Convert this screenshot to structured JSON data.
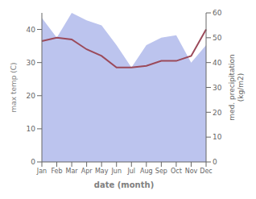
{
  "chart_data": {
    "type": "line",
    "categories": [
      "Jan",
      "Feb",
      "Mar",
      "Apr",
      "May",
      "Jun",
      "Jul",
      "Aug",
      "Sep",
      "Oct",
      "Nov",
      "Dec"
    ],
    "xlabel": "date (month)",
    "ylabel": "max temp (C)",
    "y2label": "med. precipitation\n(kg/m2)",
    "ylim": [
      0,
      45
    ],
    "yticks": [
      0,
      10,
      20,
      30,
      40
    ],
    "y2lim": [
      0,
      60
    ],
    "y2ticks": [
      0,
      10,
      20,
      30,
      40,
      50,
      60
    ],
    "grid": false,
    "series": [
      {
        "type": "area",
        "axis": "y2",
        "color": "#bcc4ee",
        "values": [
          58,
          50,
          60,
          57,
          55,
          47,
          38,
          47,
          50,
          51,
          40,
          47
        ]
      },
      {
        "type": "line",
        "color": "#9b4a5a",
        "values": [
          36.5,
          37.5,
          37.0,
          34.0,
          32.0,
          28.5,
          28.5,
          29.0,
          30.5,
          30.5,
          32.0,
          40.0
        ]
      }
    ]
  }
}
